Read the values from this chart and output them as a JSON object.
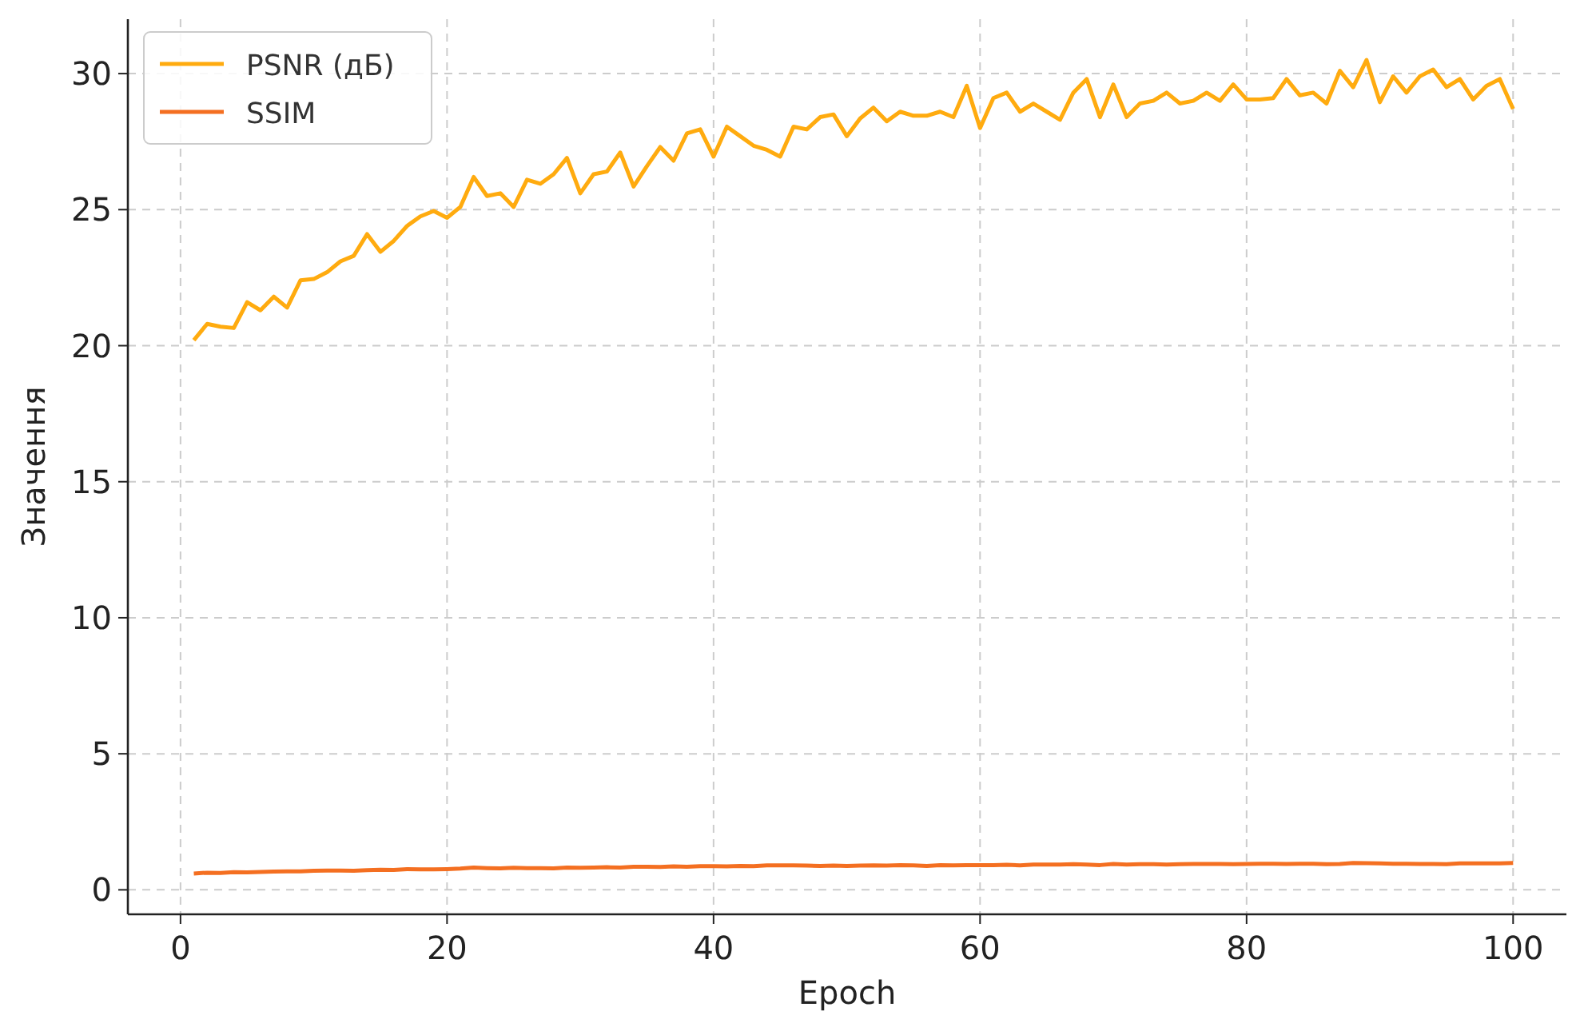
{
  "chart_data": {
    "type": "line",
    "xlabel": "Epoch",
    "ylabel": "Значення",
    "x": [
      1,
      2,
      3,
      4,
      5,
      6,
      7,
      8,
      9,
      10,
      11,
      12,
      13,
      14,
      15,
      16,
      17,
      18,
      19,
      20,
      21,
      22,
      23,
      24,
      25,
      26,
      27,
      28,
      29,
      30,
      31,
      32,
      33,
      34,
      35,
      36,
      37,
      38,
      39,
      40,
      41,
      42,
      43,
      44,
      45,
      46,
      47,
      48,
      49,
      50,
      51,
      52,
      53,
      54,
      55,
      56,
      57,
      58,
      59,
      60,
      61,
      62,
      63,
      64,
      65,
      66,
      67,
      68,
      69,
      70,
      71,
      72,
      73,
      74,
      75,
      76,
      77,
      78,
      79,
      80,
      81,
      82,
      83,
      84,
      85,
      86,
      87,
      88,
      89,
      90,
      91,
      92,
      93,
      94,
      95,
      96,
      97,
      98,
      99,
      100
    ],
    "series": [
      {
        "name": "PSNR (дБ)",
        "color": "#ffab0f",
        "values": [
          20.2,
          20.8,
          20.7,
          20.65,
          21.6,
          21.3,
          21.8,
          21.4,
          22.4,
          22.45,
          22.7,
          23.1,
          23.3,
          24.1,
          23.45,
          23.85,
          24.4,
          24.75,
          24.95,
          24.7,
          25.1,
          26.2,
          25.5,
          25.6,
          25.1,
          26.1,
          25.95,
          26.3,
          26.9,
          25.6,
          26.3,
          26.4,
          27.1,
          25.85,
          26.6,
          27.3,
          26.8,
          27.8,
          27.95,
          26.95,
          28.05,
          27.7,
          27.35,
          27.2,
          26.95,
          28.05,
          27.95,
          28.4,
          28.5,
          27.7,
          28.35,
          28.75,
          28.25,
          28.6,
          28.45,
          28.45,
          28.6,
          28.4,
          29.55,
          28.0,
          29.1,
          29.3,
          28.6,
          28.9,
          28.6,
          28.3,
          29.3,
          29.8,
          28.4,
          29.6,
          28.4,
          28.9,
          29.0,
          29.3,
          28.9,
          29.0,
          29.3,
          29.0,
          29.6,
          29.05,
          29.05,
          29.1,
          29.8,
          29.2,
          29.3,
          28.9,
          30.1,
          29.5,
          30.5,
          28.95,
          29.9,
          29.3,
          29.9,
          30.15,
          29.5,
          29.8,
          29.05,
          29.55,
          29.8,
          28.7
        ]
      },
      {
        "name": "SSIM",
        "color": "#f46f21",
        "values": [
          0.6,
          0.63,
          0.62,
          0.65,
          0.64,
          0.66,
          0.67,
          0.68,
          0.68,
          0.7,
          0.71,
          0.71,
          0.7,
          0.72,
          0.74,
          0.73,
          0.76,
          0.75,
          0.75,
          0.76,
          0.78,
          0.82,
          0.8,
          0.79,
          0.81,
          0.8,
          0.8,
          0.79,
          0.82,
          0.81,
          0.82,
          0.83,
          0.82,
          0.85,
          0.85,
          0.84,
          0.86,
          0.85,
          0.87,
          0.87,
          0.86,
          0.88,
          0.87,
          0.9,
          0.9,
          0.9,
          0.89,
          0.88,
          0.89,
          0.88,
          0.89,
          0.9,
          0.89,
          0.91,
          0.9,
          0.88,
          0.91,
          0.9,
          0.91,
          0.91,
          0.91,
          0.92,
          0.9,
          0.93,
          0.93,
          0.93,
          0.94,
          0.93,
          0.91,
          0.95,
          0.93,
          0.94,
          0.94,
          0.93,
          0.94,
          0.95,
          0.95,
          0.95,
          0.94,
          0.95,
          0.96,
          0.96,
          0.95,
          0.96,
          0.96,
          0.94,
          0.95,
          0.99,
          0.98,
          0.97,
          0.96,
          0.96,
          0.95,
          0.95,
          0.94,
          0.97,
          0.97,
          0.97,
          0.97,
          0.99
        ]
      }
    ],
    "xlim": [
      -3.95,
      104
    ],
    "xticks": [
      0,
      20,
      40,
      60,
      80,
      100
    ],
    "ylim": [
      -0.9,
      32
    ],
    "yticks": [
      0,
      5,
      10,
      15,
      20,
      25,
      30
    ],
    "grid": true,
    "legend": "top left",
    "line_style": "solid",
    "marker": "none"
  }
}
